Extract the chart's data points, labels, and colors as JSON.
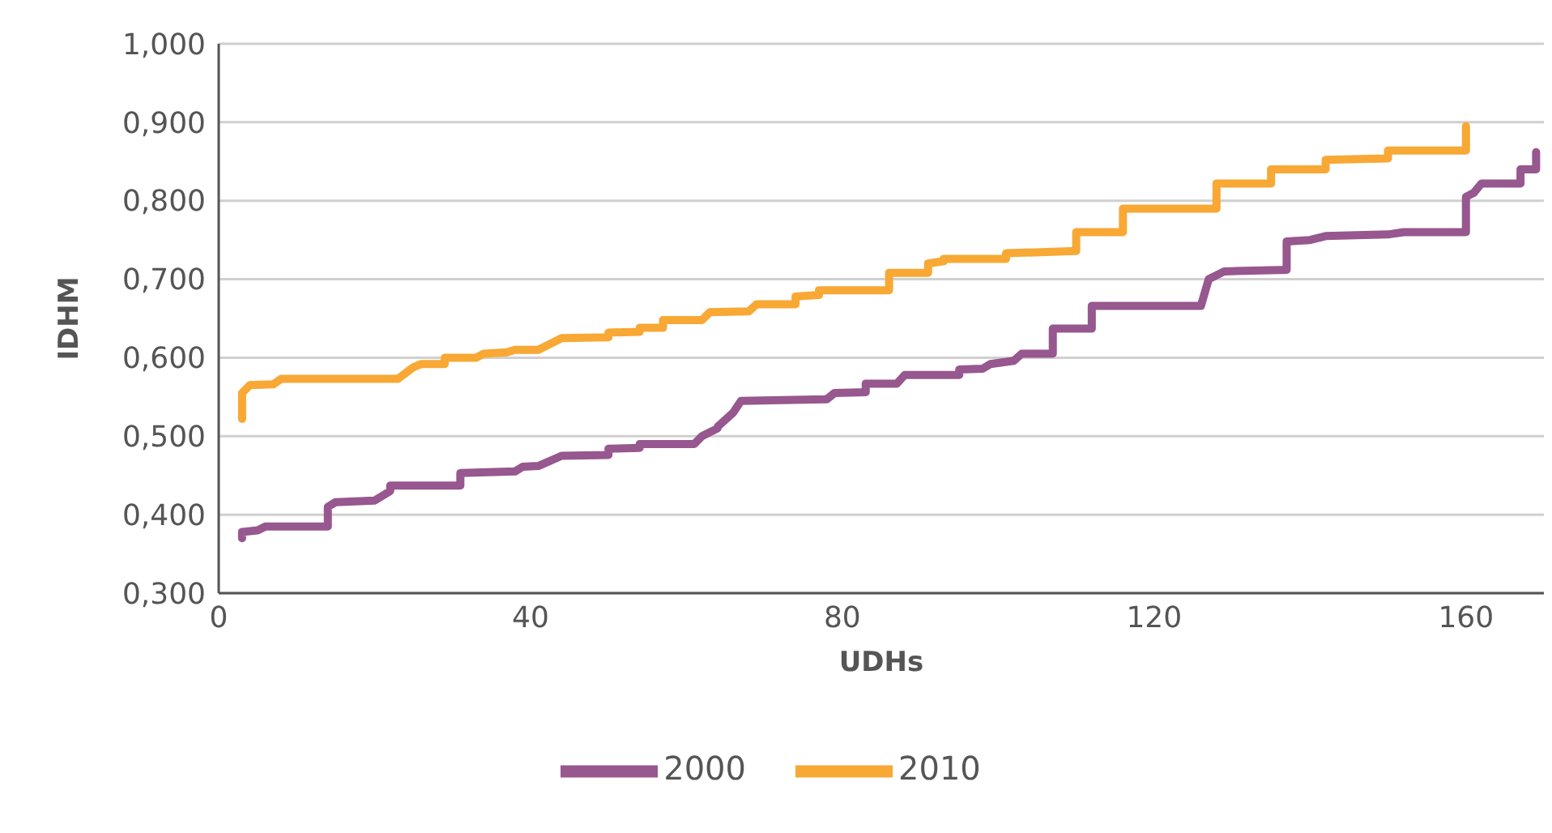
{
  "chart_data": {
    "type": "line",
    "xlabel": "UDHs",
    "ylabel": "IDHM",
    "xlim": [
      0,
      170
    ],
    "xticks": [
      0,
      40,
      80,
      120,
      160
    ],
    "ylim": [
      0.3,
      1.0
    ],
    "yticks": [
      {
        "value": 0.3,
        "label": "0,300"
      },
      {
        "value": 0.4,
        "label": "0,400"
      },
      {
        "value": 0.5,
        "label": "0,500"
      },
      {
        "value": 0.6,
        "label": "0,600"
      },
      {
        "value": 0.7,
        "label": "0,700"
      },
      {
        "value": 0.8,
        "label": "0,800"
      },
      {
        "value": 0.9,
        "label": "0,900"
      },
      {
        "value": 1.0,
        "label": "1,000"
      }
    ],
    "grid": "y",
    "legend": "bottom",
    "marker": "none",
    "line_style": "solid",
    "series": [
      {
        "name": "2000",
        "color": "#97578f",
        "x": [
          3,
          3,
          5,
          6,
          14,
          14,
          15,
          20,
          22,
          22,
          31,
          31,
          38,
          39,
          41,
          44,
          50,
          50,
          54,
          54,
          61,
          62,
          64,
          64,
          66,
          67,
          78,
          79,
          83,
          83,
          87,
          88,
          95,
          95,
          98,
          99,
          102,
          103,
          107,
          107,
          112,
          112,
          126,
          127,
          129,
          137,
          137,
          140,
          142,
          150,
          152,
          160,
          160,
          161,
          162,
          167,
          167,
          169,
          169
        ],
        "values": [
          0.37,
          0.378,
          0.38,
          0.385,
          0.385,
          0.41,
          0.416,
          0.418,
          0.43,
          0.437,
          0.437,
          0.453,
          0.455,
          0.461,
          0.462,
          0.475,
          0.476,
          0.484,
          0.485,
          0.49,
          0.49,
          0.5,
          0.51,
          0.512,
          0.53,
          0.545,
          0.547,
          0.555,
          0.556,
          0.567,
          0.567,
          0.578,
          0.578,
          0.585,
          0.586,
          0.592,
          0.596,
          0.605,
          0.605,
          0.637,
          0.637,
          0.666,
          0.666,
          0.7,
          0.71,
          0.712,
          0.748,
          0.75,
          0.755,
          0.757,
          0.76,
          0.76,
          0.805,
          0.81,
          0.822,
          0.822,
          0.84,
          0.84,
          0.862
        ]
      },
      {
        "name": "2010",
        "color": "#f8a834",
        "x": [
          3,
          3,
          4,
          7,
          8,
          23,
          25,
          26,
          29,
          29,
          33,
          34,
          37,
          38,
          41,
          44,
          50,
          50,
          54,
          54,
          57,
          57,
          62,
          63,
          68,
          69,
          74,
          74,
          77,
          77,
          86,
          86,
          91,
          91,
          93,
          93,
          101,
          101,
          110,
          110,
          116,
          116,
          128,
          128,
          135,
          135,
          142,
          142,
          150,
          150,
          160,
          160
        ],
        "values": [
          0.522,
          0.555,
          0.565,
          0.566,
          0.573,
          0.573,
          0.588,
          0.592,
          0.592,
          0.6,
          0.6,
          0.605,
          0.607,
          0.61,
          0.61,
          0.625,
          0.626,
          0.632,
          0.633,
          0.638,
          0.638,
          0.648,
          0.648,
          0.658,
          0.659,
          0.668,
          0.668,
          0.678,
          0.68,
          0.686,
          0.686,
          0.708,
          0.708,
          0.72,
          0.723,
          0.726,
          0.726,
          0.733,
          0.736,
          0.76,
          0.76,
          0.79,
          0.79,
          0.822,
          0.822,
          0.84,
          0.84,
          0.852,
          0.854,
          0.864,
          0.864,
          0.895
        ]
      }
    ]
  }
}
